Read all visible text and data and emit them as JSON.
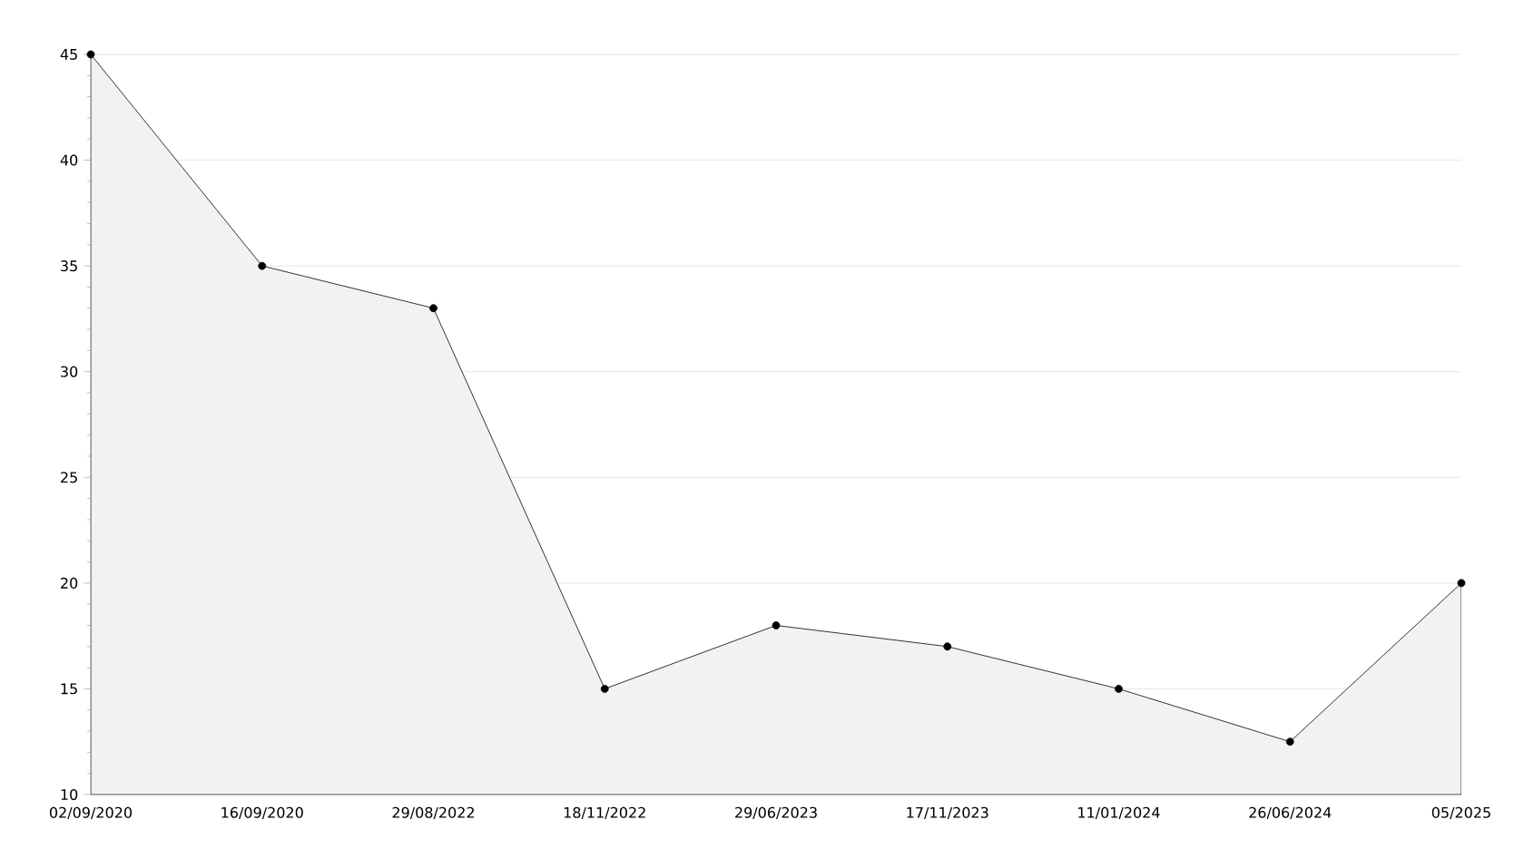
{
  "chart_data": {
    "type": "area",
    "categories": [
      "02/09/2020",
      "16/09/2020",
      "29/08/2022",
      "18/11/2022",
      "29/06/2023",
      "17/11/2023",
      "11/01/2024",
      "26/06/2024",
      "05/2025"
    ],
    "values": [
      45,
      35,
      33,
      15,
      18,
      17,
      15,
      12.5,
      20
    ],
    "color": "#000000",
    "ylim": [
      10,
      45
    ],
    "yticks": [
      10,
      15,
      20,
      25,
      30,
      35,
      40,
      45
    ],
    "grid": "y",
    "marker": "circle",
    "line_style": "solid"
  }
}
